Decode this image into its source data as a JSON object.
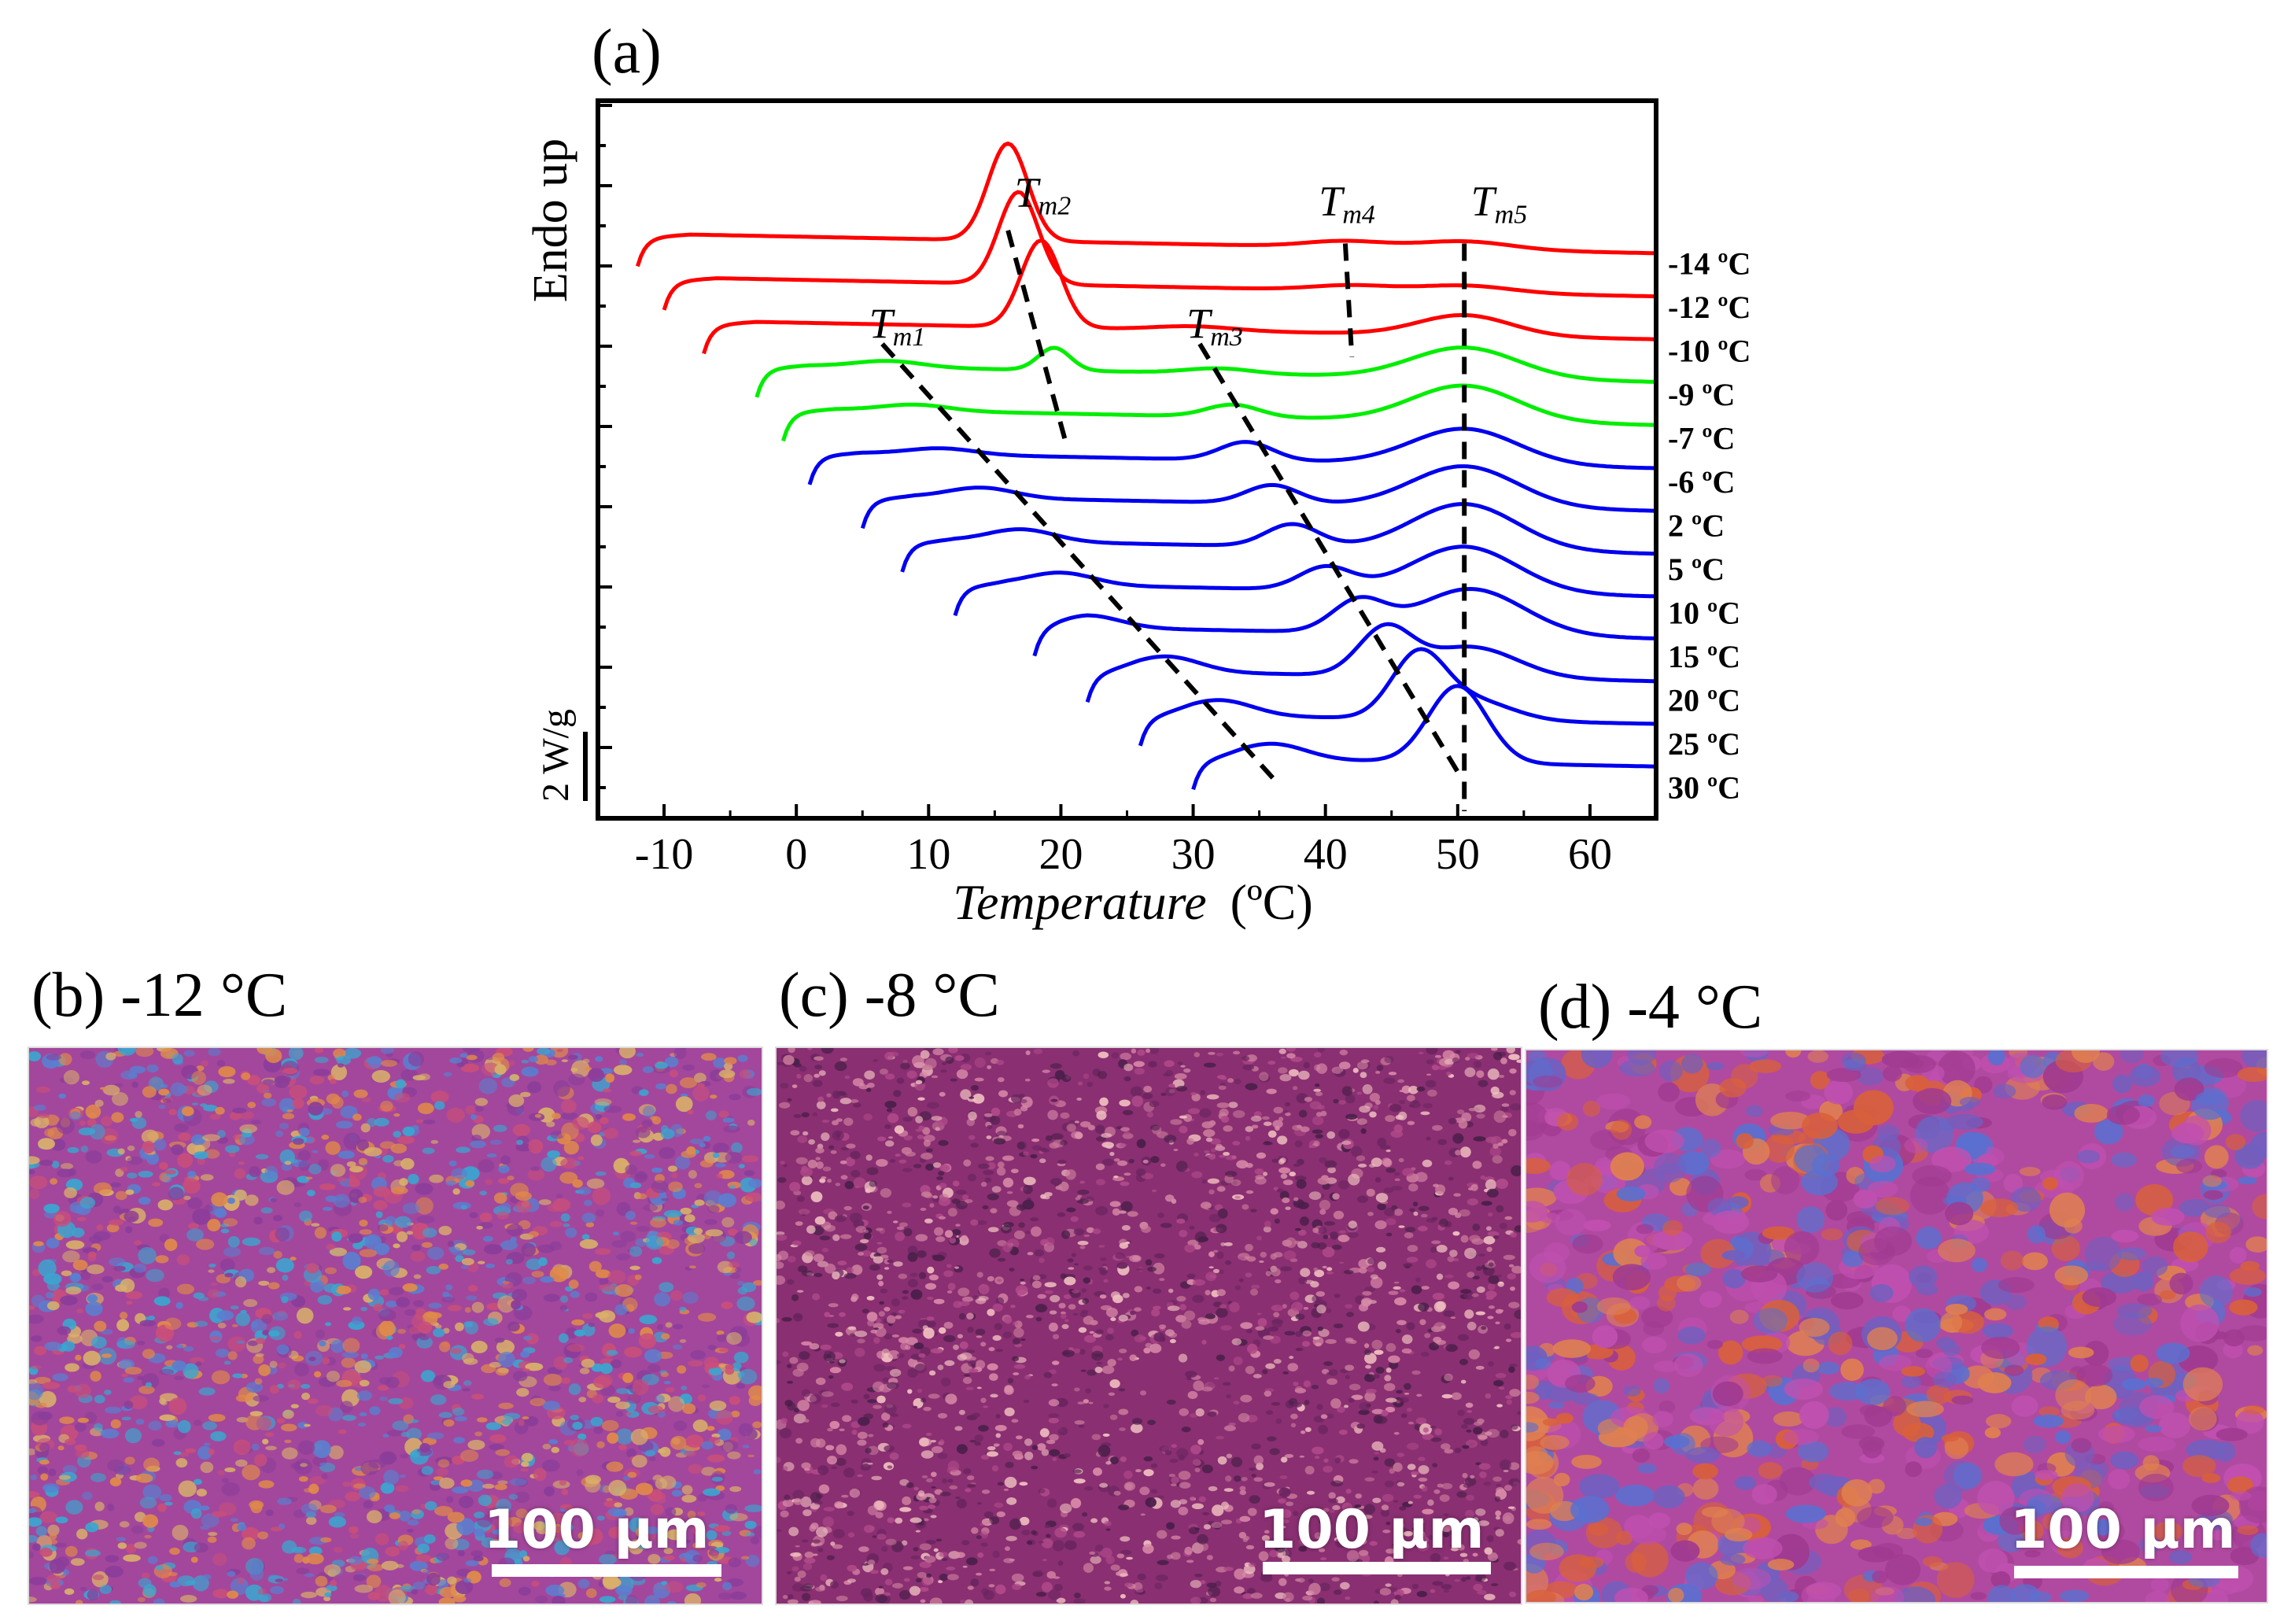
{
  "chart_data": {
    "type": "line",
    "panel_label": "(a)",
    "title": "",
    "xlabel": "Temperature",
    "xlabel_unit": "(ºC)",
    "ylabel": "Endo up",
    "xlim": [
      -15,
      65
    ],
    "xticks": [
      -10,
      0,
      10,
      20,
      30,
      40,
      50,
      60
    ],
    "scale_bar_label": "2 W/g",
    "series": [
      {
        "name": "-14 ºC",
        "label": "-14 ºC",
        "start": -12,
        "color": "#ff0000",
        "level": 0,
        "peaks": [
          [
            16,
            0.95,
            1.5
          ],
          [
            41.5,
            0.06,
            3
          ],
          [
            50.5,
            0.08,
            3.5
          ]
        ]
      },
      {
        "name": "-12 ºC",
        "label": "-12 ºC",
        "start": -10,
        "color": "#ff0000",
        "level": 1,
        "peaks": [
          [
            16.8,
            0.9,
            1.5
          ],
          [
            42,
            0.05,
            3
          ],
          [
            50.5,
            0.07,
            3.5
          ]
        ]
      },
      {
        "name": "-10 ºC",
        "label": "-10 ºC",
        "start": -7,
        "color": "#ff0000",
        "level": 2,
        "peaks": [
          [
            18.5,
            0.85,
            1.5
          ],
          [
            30,
            0.04,
            3
          ],
          [
            50.5,
            0.2,
            3.5
          ]
        ]
      },
      {
        "name": "-9 ºC",
        "label": "-9 ºC",
        "start": -3,
        "color": "#00ee00",
        "level": 3,
        "peaks": [
          [
            7,
            0.06,
            2.5
          ],
          [
            19.5,
            0.22,
            1.2
          ],
          [
            32,
            0.05,
            2.5
          ],
          [
            50.5,
            0.3,
            4
          ]
        ]
      },
      {
        "name": "-7 ºC",
        "label": "-7 ºC",
        "start": -1,
        "color": "#00ee00",
        "level": 4,
        "peaks": [
          [
            9,
            0.06,
            2.5
          ],
          [
            33,
            0.12,
            2.0
          ],
          [
            50.5,
            0.35,
            4
          ]
        ]
      },
      {
        "name": "-6 ºC",
        "label": "-6 ºC",
        "start": 1,
        "color": "#0000ee",
        "level": 5,
        "peaks": [
          [
            11,
            0.06,
            2.5
          ],
          [
            34,
            0.18,
            2.0
          ],
          [
            50.5,
            0.35,
            4
          ]
        ]
      },
      {
        "name": "2 ºC",
        "label": "2 ºC",
        "start": 5,
        "color": "#0000ee",
        "level": 6,
        "peaks": [
          [
            14,
            0.1,
            2.5
          ],
          [
            36,
            0.18,
            2.0
          ],
          [
            50.5,
            0.4,
            4
          ]
        ]
      },
      {
        "name": "5 ºC",
        "label": "5 ºC",
        "start": 8,
        "color": "#0000ee",
        "level": 7,
        "peaks": [
          [
            17,
            0.12,
            2.5
          ],
          [
            37.5,
            0.22,
            2.0
          ],
          [
            50.5,
            0.45,
            4
          ]
        ]
      },
      {
        "name": "10 ºC",
        "label": "10 ºC",
        "start": 12,
        "color": "#0000ee",
        "level": 8,
        "peaks": [
          [
            20,
            0.12,
            2.5
          ],
          [
            40,
            0.22,
            2.0
          ],
          [
            50.5,
            0.45,
            4
          ]
        ]
      },
      {
        "name": "15 ºC",
        "label": "15 ºC",
        "start": 18,
        "color": "#0000ee",
        "level": 9,
        "peaks": [
          [
            22,
            0.12,
            2.5
          ],
          [
            42.5,
            0.3,
            2.0
          ],
          [
            51,
            0.45,
            4
          ]
        ]
      },
      {
        "name": "20 ºC",
        "label": "20 ºC",
        "start": 22,
        "color": "#0000ee",
        "level": 10,
        "peaks": [
          [
            28,
            0.15,
            2.5
          ],
          [
            44.5,
            0.45,
            2.0
          ],
          [
            51,
            0.3,
            3.5
          ]
        ]
      },
      {
        "name": "25 ºC",
        "label": "25 ºC",
        "start": 26,
        "color": "#0000ee",
        "level": 11,
        "peaks": [
          [
            32,
            0.15,
            2.5
          ],
          [
            47,
            0.6,
            2.0
          ],
          [
            51,
            0.2,
            3.0
          ]
        ]
      },
      {
        "name": "30 ºC",
        "label": "30 ºC",
        "start": 30,
        "color": "#0000ee",
        "level": 12,
        "peaks": [
          [
            36,
            0.15,
            2.5
          ],
          [
            50,
            0.75,
            2.2
          ]
        ]
      }
    ],
    "annotations": [
      {
        "name": "tm1",
        "main": "T",
        "sub": "m1",
        "x": 5.5,
        "level": 2.2,
        "line": [
          [
            6.5,
            2.2
          ],
          [
            36.5,
            12.3
          ]
        ]
      },
      {
        "name": "tm2",
        "main": "T",
        "sub": "m2",
        "x": 16.5,
        "level": -0.8,
        "line": [
          [
            16,
            -0.4
          ],
          [
            20.5,
            4.6
          ]
        ]
      },
      {
        "name": "tm3",
        "main": "T",
        "sub": "m3",
        "x": 29.5,
        "level": 2.2,
        "line": [
          [
            30.5,
            2.2
          ],
          [
            50,
            12.0
          ]
        ]
      },
      {
        "name": "tm4",
        "main": "T",
        "sub": "m4",
        "x": 39.5,
        "level": -0.6,
        "line": [
          [
            41.5,
            -0.1
          ],
          [
            42,
            2.5
          ]
        ]
      },
      {
        "name": "tm5",
        "main": "T",
        "sub": "m5",
        "x": 51,
        "level": -0.6,
        "line": [
          [
            50.5,
            -0.1
          ],
          [
            50.5,
            12.9
          ]
        ]
      }
    ]
  },
  "panels": [
    {
      "id": "b",
      "label": "(b) -12 °C",
      "scale_text": "100 μm",
      "colors": [
        "#a3479c",
        "#c94f7a",
        "#3aa6d0",
        "#e08a4a",
        "#8a3d9a",
        "#d9b06a",
        "#5a7fd0"
      ]
    },
    {
      "id": "c",
      "label": "(c) -8 °C",
      "scale_text": "100 μm",
      "colors": [
        "#8a2f72",
        "#b04a8a",
        "#d98aa8",
        "#6a2560",
        "#c97a9a",
        "#f0c0c0",
        "#4a1f4a"
      ]
    },
    {
      "id": "d",
      "label": "(d) -4 °C",
      "scale_text": "100 μm",
      "colors": [
        "#b04aa0",
        "#d9603a",
        "#7060c0",
        "#c050b0",
        "#e08050",
        "#5a70d0",
        "#a03a90"
      ]
    }
  ]
}
